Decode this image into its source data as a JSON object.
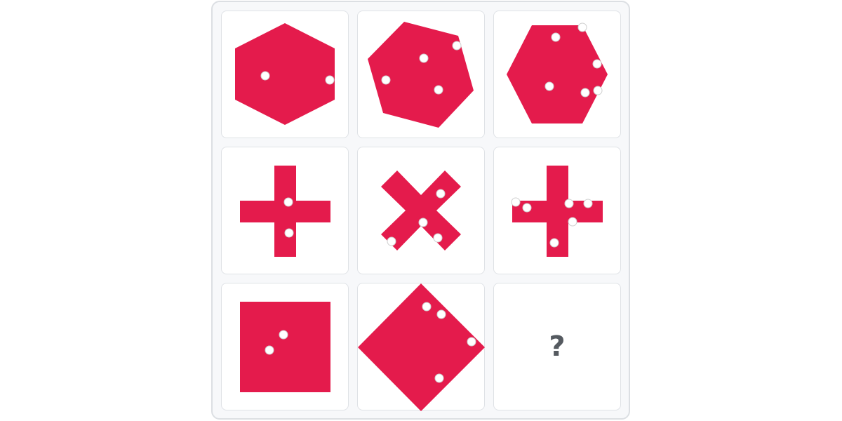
{
  "puzzle": {
    "shape_color": "#e41b4c",
    "dot_color": "#ffffff",
    "dot_outline": "#cfcfcf",
    "question_color": "#555a60",
    "rows": [
      [
        {
          "shape": "hexagon-flat-sides",
          "dots": 2
        },
        {
          "shape": "hexagon-rotated",
          "dots": 4
        },
        {
          "shape": "hexagon-pointy-sides",
          "dots": 6
        }
      ],
      [
        {
          "shape": "plus",
          "dots": 2
        },
        {
          "shape": "x-cross",
          "dots": 4
        },
        {
          "shape": "plus",
          "dots": 6
        }
      ],
      [
        {
          "shape": "square",
          "dots": 2
        },
        {
          "shape": "diamond",
          "dots": 4
        },
        {
          "shape": "unknown",
          "dots": null,
          "label": "?"
        }
      ]
    ]
  }
}
